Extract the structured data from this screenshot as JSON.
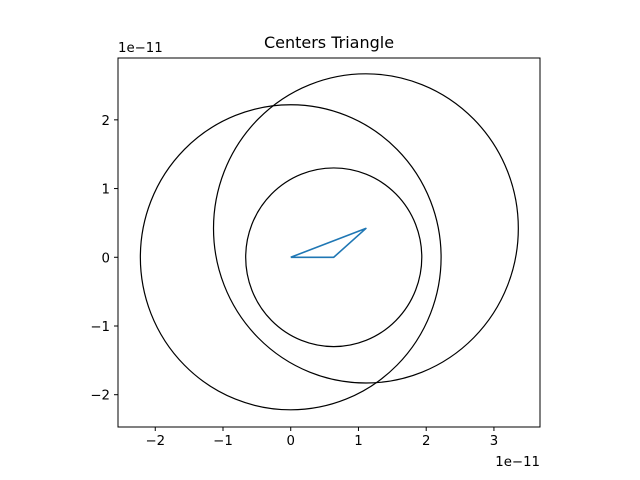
{
  "chart_data": {
    "type": "line",
    "title": "Centers Triangle",
    "xlabel": "",
    "ylabel": "",
    "x_offset_label": "1e−11",
    "y_offset_label": "1e−11",
    "xlim": [
      -2.55,
      3.68
    ],
    "ylim": [
      -2.47,
      2.9
    ],
    "x_ticks": [
      -2,
      -1,
      0,
      1,
      2,
      3
    ],
    "x_tick_labels": [
      "−2",
      "−1",
      "0",
      "1",
      "2",
      "3"
    ],
    "y_ticks": [
      -2,
      -1,
      0,
      1,
      2
    ],
    "y_tick_labels": [
      "−2",
      "−1",
      "0",
      "1",
      "2"
    ],
    "grid": false,
    "aspect": "equal",
    "units_scale": 1e-11,
    "series": [
      {
        "kind": "polyline",
        "color": "#1f77b4",
        "x": [
          0,
          0.635,
          1.11,
          0
        ],
        "y": [
          0,
          0,
          0.42,
          0
        ]
      }
    ],
    "circles": [
      {
        "cx": 0,
        "cy": 0,
        "r": 2.22,
        "color": "#000000"
      },
      {
        "cx": 0.635,
        "cy": 0,
        "r": 1.3,
        "color": "#000000"
      },
      {
        "cx": 1.11,
        "cy": 0.42,
        "r": 2.25,
        "color": "#000000"
      }
    ]
  }
}
